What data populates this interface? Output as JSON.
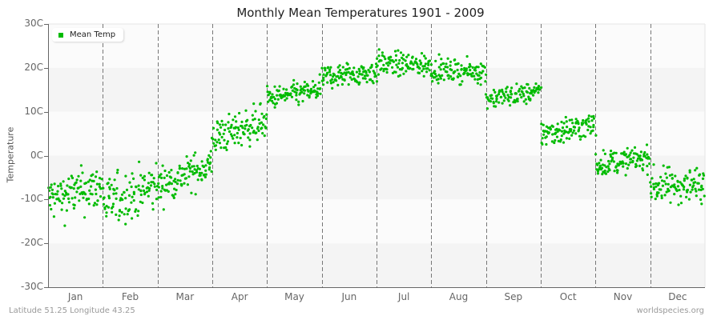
{
  "chart_data": {
    "type": "scatter",
    "title": "Monthly Mean Temperatures 1901 - 2009",
    "xlabel": "",
    "ylabel": "Temperature",
    "ylim": [
      -30,
      30
    ],
    "yticks": [
      "30C",
      "20C",
      "10C",
      "0C",
      "-10C",
      "-20C",
      "-30C"
    ],
    "ytick_values": [
      30,
      20,
      10,
      0,
      -10,
      -20,
      -30
    ],
    "categories": [
      "Jan",
      "Feb",
      "Mar",
      "Apr",
      "May",
      "Jun",
      "Jul",
      "Aug",
      "Sep",
      "Oct",
      "Nov",
      "Dec"
    ],
    "grid": {
      "vertical_dashed_month_dividers": true,
      "alternating_horizontal_bands": true
    },
    "legend": {
      "position": "top-left-inside",
      "entries": [
        "Mean Temp"
      ]
    },
    "series": [
      {
        "name": "Mean Temp",
        "color": "#00bb00",
        "points_per_month": 109,
        "monthly_summary": [
          {
            "month": "Jan",
            "mean_start": -10,
            "mean_end": -7,
            "min": -18,
            "max": 0
          },
          {
            "month": "Feb",
            "mean_start": -11,
            "mean_end": -7,
            "min": -20.5,
            "max": -1
          },
          {
            "month": "Mar",
            "mean_start": -7,
            "mean_end": -2,
            "min": -13,
            "max": 1
          },
          {
            "month": "Apr",
            "mean_start": 4,
            "mean_end": 8,
            "min": -1,
            "max": 13
          },
          {
            "month": "May",
            "mean_start": 13,
            "mean_end": 15,
            "min": 11,
            "max": 20
          },
          {
            "month": "Jun",
            "mean_start": 18,
            "mean_end": 19,
            "min": 14,
            "max": 23.5
          },
          {
            "month": "Jul",
            "mean_start": 21,
            "mean_end": 20.5,
            "min": 16,
            "max": 25.5
          },
          {
            "month": "Aug",
            "mean_start": 19.5,
            "mean_end": 19,
            "min": 16,
            "max": 24.5
          },
          {
            "month": "Sep",
            "mean_start": 13,
            "mean_end": 14.5,
            "min": 10,
            "max": 18
          },
          {
            "month": "Oct",
            "mean_start": 5,
            "mean_end": 7,
            "min": 0,
            "max": 10.5
          },
          {
            "month": "Nov",
            "mean_start": -2,
            "mean_end": -0.5,
            "min": -6.5,
            "max": 3
          },
          {
            "month": "Dec",
            "mean_start": -7,
            "mean_end": -6.5,
            "min": -15,
            "max": -1
          }
        ]
      }
    ]
  },
  "footer": {
    "location": "Latitude 51.25 Longitude 43.25",
    "source": "worldspecies.org"
  },
  "legend_label": "Mean Temp",
  "colors": {
    "point": "#00bb00",
    "band_light": "#fbfbfb",
    "band_dark": "#f4f4f4",
    "axis": "#666666",
    "divider": "#777777"
  }
}
